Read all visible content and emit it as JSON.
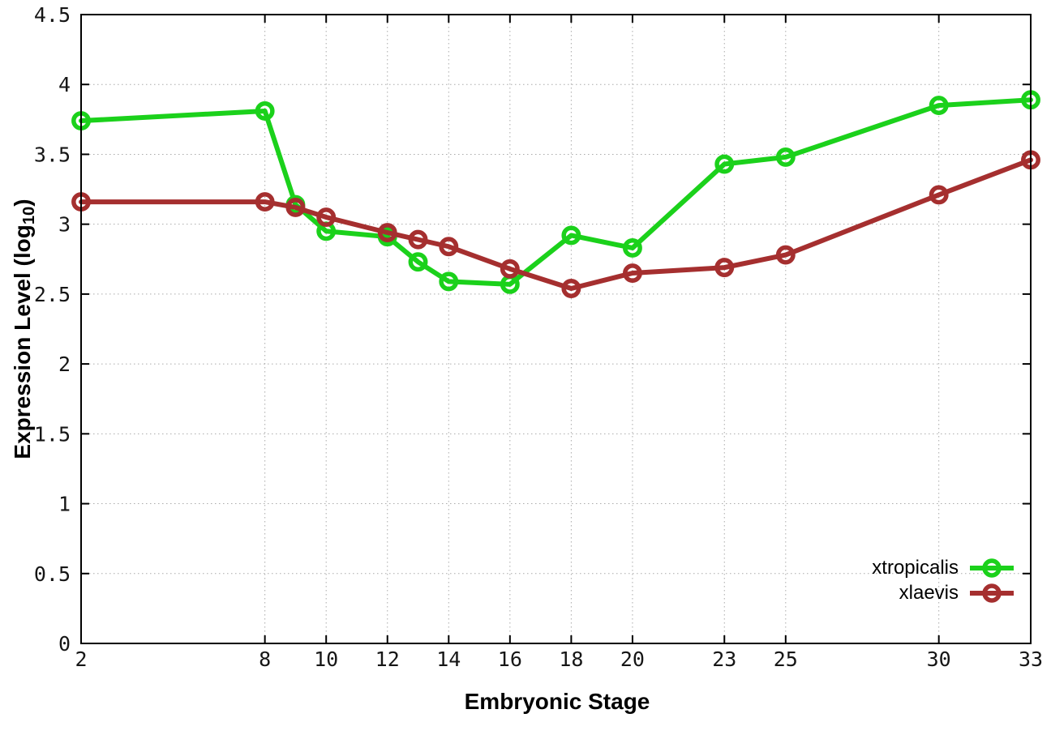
{
  "axes": {
    "x_title": "Embryonic Stage",
    "y_title_prefix": "Expression Level (log",
    "y_title_sub": "10",
    "y_title_suffix": ")"
  },
  "chart_data": {
    "type": "line",
    "title": "",
    "x": [
      2,
      8,
      9,
      10,
      12,
      13,
      14,
      16,
      18,
      20,
      23,
      25,
      30,
      33
    ],
    "series": [
      {
        "name": "xtropicalis",
        "color": "#1bd11b",
        "values": [
          3.74,
          3.81,
          3.14,
          2.95,
          2.91,
          2.73,
          2.59,
          2.57,
          2.92,
          2.83,
          3.43,
          3.48,
          3.85,
          3.89
        ]
      },
      {
        "name": "xlaevis",
        "color": "#a52f2f",
        "values": [
          3.16,
          3.16,
          3.12,
          3.05,
          2.94,
          2.89,
          2.84,
          2.68,
          2.54,
          2.65,
          2.69,
          2.78,
          3.21,
          3.46
        ]
      }
    ],
    "xlabel": "Embryonic Stage",
    "ylabel": "Expression Level (log10)",
    "xlim": [
      2,
      33
    ],
    "ylim": [
      0,
      4.5
    ],
    "x_ticks": [
      2,
      8,
      10,
      12,
      14,
      16,
      18,
      20,
      23,
      25,
      30,
      33
    ],
    "y_ticks": [
      0,
      0.5,
      1,
      1.5,
      2,
      2.5,
      3,
      3.5,
      4,
      4.5
    ],
    "grid": true,
    "legend_position": "inside-bottom-right",
    "marker": "open-circle",
    "background": "#ffffff",
    "grid_color": "#aaaaaa",
    "border_color": "#000000"
  }
}
